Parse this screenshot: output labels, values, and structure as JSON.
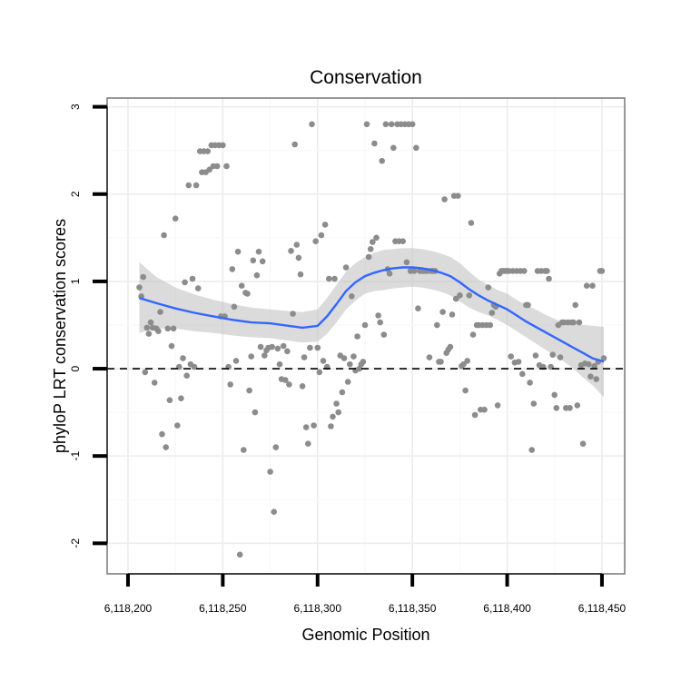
{
  "chart_data": {
    "type": "scatter",
    "title": "Conservation",
    "xlabel": "Genomic Position",
    "ylabel": "phyloP LRT conservation scores",
    "xlim": [
      6118189,
      6118462
    ],
    "ylim": [
      -2.35,
      3.1
    ],
    "x_ticks": [
      6118200,
      6118250,
      6118300,
      6118350,
      6118400,
      6118450
    ],
    "x_tick_labels": [
      "6,118,200",
      "6,118,250",
      "6,118,300",
      "6,118,350",
      "6,118,400",
      "6,118,450"
    ],
    "y_ticks": [
      -2,
      -1,
      0,
      1,
      2,
      3
    ],
    "y_tick_labels": [
      "-2",
      "-1",
      "0",
      "1",
      "2",
      "3"
    ],
    "reference_line": {
      "y": 0,
      "style": "dashed"
    },
    "colors": {
      "points": "#8c8c8c",
      "smooth": "#3366ff",
      "band": "#bdbdbd",
      "panel_border": "#7f7f7f"
    },
    "points": [
      [
        6118206,
        0.93
      ],
      [
        6118207,
        0.83
      ],
      [
        6118208,
        1.05
      ],
      [
        6118209,
        -0.04
      ],
      [
        6118210,
        0.47
      ],
      [
        6118211,
        0.4
      ],
      [
        6118212,
        0.53
      ],
      [
        6118213,
        0.47
      ],
      [
        6118214,
        -0.16
      ],
      [
        6118215,
        0.46
      ],
      [
        6118216,
        0.43
      ],
      [
        6118217,
        0.65
      ],
      [
        6118218,
        -0.75
      ],
      [
        6118219,
        1.53
      ],
      [
        6118220,
        -0.9
      ],
      [
        6118221,
        0.46
      ],
      [
        6118222,
        -0.36
      ],
      [
        6118223,
        0.26
      ],
      [
        6118224,
        0.46
      ],
      [
        6118225,
        1.72
      ],
      [
        6118226,
        -0.65
      ],
      [
        6118227,
        0.02
      ],
      [
        6118228,
        -0.34
      ],
      [
        6118229,
        0.12
      ],
      [
        6118230,
        0.99
      ],
      [
        6118231,
        -0.08
      ],
      [
        6118232,
        2.1
      ],
      [
        6118233,
        0.05
      ],
      [
        6118234,
        1.03
      ],
      [
        6118235,
        0.02
      ],
      [
        6118236,
        2.1
      ],
      [
        6118237,
        0.92
      ],
      [
        6118238,
        2.49
      ],
      [
        6118239,
        2.25
      ],
      [
        6118240,
        2.49
      ],
      [
        6118241,
        2.25
      ],
      [
        6118242,
        2.49
      ],
      [
        6118243,
        2.28
      ],
      [
        6118244,
        2.56
      ],
      [
        6118245,
        2.32
      ],
      [
        6118246,
        2.56
      ],
      [
        6118247,
        2.32
      ],
      [
        6118248,
        2.56
      ],
      [
        6118249,
        0.6
      ],
      [
        6118250,
        2.56
      ],
      [
        6118251,
        0.6
      ],
      [
        6118252,
        2.32
      ],
      [
        6118253,
        0.02
      ],
      [
        6118254,
        -0.18
      ],
      [
        6118255,
        1.14
      ],
      [
        6118256,
        0.71
      ],
      [
        6118257,
        0.09
      ],
      [
        6118258,
        1.34
      ],
      [
        6118259,
        -2.13
      ],
      [
        6118260,
        0.95
      ],
      [
        6118261,
        -0.93
      ],
      [
        6118262,
        0.87
      ],
      [
        6118263,
        0.86
      ],
      [
        6118264,
        -0.25
      ],
      [
        6118265,
        0.14
      ],
      [
        6118266,
        1.24
      ],
      [
        6118267,
        -0.5
      ],
      [
        6118268,
        1.07
      ],
      [
        6118269,
        1.34
      ],
      [
        6118270,
        0.25
      ],
      [
        6118271,
        1.23
      ],
      [
        6118272,
        0.15
      ],
      [
        6118273,
        0.21
      ],
      [
        6118274,
        0.24
      ],
      [
        6118275,
        -1.18
      ],
      [
        6118276,
        0.25
      ],
      [
        6118277,
        -1.64
      ],
      [
        6118278,
        -0.9
      ],
      [
        6118279,
        0.23
      ],
      [
        6118280,
        0.05
      ],
      [
        6118281,
        -0.12
      ],
      [
        6118282,
        0.26
      ],
      [
        6118283,
        -0.13
      ],
      [
        6118284,
        0.2
      ],
      [
        6118285,
        -0.18
      ],
      [
        6118286,
        1.35
      ],
      [
        6118287,
        0.63
      ],
      [
        6118288,
        2.57
      ],
      [
        6118289,
        1.42
      ],
      [
        6118290,
        1.27
      ],
      [
        6118291,
        1.08
      ],
      [
        6118292,
        -0.2
      ],
      [
        6118293,
        0.13
      ],
      [
        6118294,
        -0.67
      ],
      [
        6118295,
        -0.86
      ],
      [
        6118296,
        0.24
      ],
      [
        6118297,
        2.8
      ],
      [
        6118298,
        -0.65
      ],
      [
        6118299,
        1.46
      ],
      [
        6118300,
        0.24
      ],
      [
        6118301,
        -0.04
      ],
      [
        6118302,
        1.53
      ],
      [
        6118303,
        0.09
      ],
      [
        6118304,
        1.65
      ],
      [
        6118305,
        0.02
      ],
      [
        6118306,
        1.03
      ],
      [
        6118307,
        -0.66
      ],
      [
        6118308,
        -0.55
      ],
      [
        6118309,
        1.03
      ],
      [
        6118310,
        -0.4
      ],
      [
        6118311,
        -0.5
      ],
      [
        6118312,
        0.15
      ],
      [
        6118313,
        -0.27
      ],
      [
        6118314,
        0.12
      ],
      [
        6118315,
        1.16
      ],
      [
        6118316,
        -0.15
      ],
      [
        6118317,
        0.05
      ],
      [
        6118318,
        0.83
      ],
      [
        6118319,
        0.14
      ],
      [
        6118320,
        -0.02
      ],
      [
        6118321,
        0.37
      ],
      [
        6118322,
        0.0
      ],
      [
        6118323,
        0.05
      ],
      [
        6118324,
        0.08
      ],
      [
        6118325,
        0.5
      ],
      [
        6118326,
        2.8
      ],
      [
        6118327,
        1.28
      ],
      [
        6118328,
        1.37
      ],
      [
        6118329,
        1.45
      ],
      [
        6118330,
        2.58
      ],
      [
        6118331,
        1.5
      ],
      [
        6118332,
        0.61
      ],
      [
        6118333,
        0.53
      ],
      [
        6118334,
        2.38
      ],
      [
        6118335,
        0.39
      ],
      [
        6118336,
        2.8
      ],
      [
        6118337,
        1.14
      ],
      [
        6118338,
        1.09
      ],
      [
        6118339,
        2.8
      ],
      [
        6118340,
        2.53
      ],
      [
        6118341,
        1.46
      ],
      [
        6118342,
        2.8
      ],
      [
        6118343,
        1.46
      ],
      [
        6118344,
        2.8
      ],
      [
        6118345,
        1.46
      ],
      [
        6118346,
        2.8
      ],
      [
        6118347,
        1.22
      ],
      [
        6118348,
        2.8
      ],
      [
        6118349,
        1.12
      ],
      [
        6118350,
        2.8
      ],
      [
        6118351,
        1.12
      ],
      [
        6118352,
        2.53
      ],
      [
        6118353,
        0.69
      ],
      [
        6118354,
        1.12
      ],
      [
        6118355,
        1.12
      ],
      [
        6118356,
        1.12
      ],
      [
        6118357,
        1.12
      ],
      [
        6118358,
        1.12
      ],
      [
        6118359,
        0.13
      ],
      [
        6118360,
        1.12
      ],
      [
        6118361,
        1.12
      ],
      [
        6118362,
        1.12
      ],
      [
        6118363,
        0.5
      ],
      [
        6118364,
        0.08
      ],
      [
        6118365,
        0.08
      ],
      [
        6118366,
        0.65
      ],
      [
        6118367,
        1.94
      ],
      [
        6118368,
        0.18
      ],
      [
        6118369,
        0.22
      ],
      [
        6118370,
        0.25
      ],
      [
        6118371,
        0.62
      ],
      [
        6118372,
        1.98
      ],
      [
        6118373,
        0.8
      ],
      [
        6118374,
        1.98
      ],
      [
        6118375,
        0.84
      ],
      [
        6118376,
        0.03
      ],
      [
        6118377,
        0.05
      ],
      [
        6118378,
        -0.25
      ],
      [
        6118379,
        0.09
      ],
      [
        6118380,
        0.84
      ],
      [
        6118381,
        1.67
      ],
      [
        6118382,
        0.39
      ],
      [
        6118383,
        -0.53
      ],
      [
        6118384,
        0.5
      ],
      [
        6118385,
        0.5
      ],
      [
        6118386,
        -0.47
      ],
      [
        6118387,
        0.5
      ],
      [
        6118388,
        -0.47
      ],
      [
        6118389,
        0.5
      ],
      [
        6118390,
        0.93
      ],
      [
        6118391,
        0.5
      ],
      [
        6118392,
        0.64
      ],
      [
        6118393,
        0.73
      ],
      [
        6118394,
        0.71
      ],
      [
        6118395,
        -0.42
      ],
      [
        6118396,
        1.09
      ],
      [
        6118397,
        1.12
      ],
      [
        6118398,
        1.12
      ],
      [
        6118399,
        1.12
      ],
      [
        6118400,
        1.12
      ],
      [
        6118401,
        1.12
      ],
      [
        6118402,
        0.14
      ],
      [
        6118403,
        1.12
      ],
      [
        6118404,
        0.07
      ],
      [
        6118405,
        1.12
      ],
      [
        6118406,
        0.08
      ],
      [
        6118407,
        1.12
      ],
      [
        6118408,
        -0.06
      ],
      [
        6118409,
        1.12
      ],
      [
        6118410,
        0.73
      ],
      [
        6118411,
        0.73
      ],
      [
        6118412,
        -0.16
      ],
      [
        6118413,
        -0.93
      ],
      [
        6118414,
        -0.4
      ],
      [
        6118415,
        0.15
      ],
      [
        6118416,
        1.12
      ],
      [
        6118417,
        0.04
      ],
      [
        6118418,
        1.12
      ],
      [
        6118419,
        0.02
      ],
      [
        6118420,
        1.12
      ],
      [
        6118421,
        1.12
      ],
      [
        6118422,
        1.03
      ],
      [
        6118423,
        0.02
      ],
      [
        6118424,
        0.16
      ],
      [
        6118425,
        -0.3
      ],
      [
        6118426,
        -0.45
      ],
      [
        6118427,
        0.5
      ],
      [
        6118428,
        0.13
      ],
      [
        6118429,
        0.53
      ],
      [
        6118430,
        0.53
      ],
      [
        6118431,
        -0.45
      ],
      [
        6118432,
        0.53
      ],
      [
        6118433,
        -0.45
      ],
      [
        6118434,
        0.53
      ],
      [
        6118435,
        0.53
      ],
      [
        6118436,
        0.73
      ],
      [
        6118437,
        -0.42
      ],
      [
        6118438,
        0.53
      ],
      [
        6118439,
        0.04
      ],
      [
        6118440,
        -0.86
      ],
      [
        6118441,
        0.06
      ],
      [
        6118442,
        0.95
      ],
      [
        6118443,
        0.05
      ],
      [
        6118444,
        -0.09
      ],
      [
        6118445,
        0.95
      ],
      [
        6118446,
        0.03
      ],
      [
        6118447,
        -0.12
      ],
      [
        6118448,
        0.08
      ],
      [
        6118449,
        1.12
      ],
      [
        6118450,
        1.12
      ],
      [
        6118451,
        0.12
      ]
    ],
    "smooth_line": {
      "method": "loess",
      "x": [
        6118206,
        6118215,
        6118225,
        6118235,
        6118245,
        6118255,
        6118265,
        6118275,
        6118285,
        6118292,
        6118300,
        6118305,
        6118310,
        6118315,
        6118320,
        6118325,
        6118330,
        6118335,
        6118340,
        6118345,
        6118350,
        6118355,
        6118360,
        6118365,
        6118370,
        6118375,
        6118380,
        6118385,
        6118390,
        6118395,
        6118400,
        6118405,
        6118410,
        6118415,
        6118420,
        6118425,
        6118430,
        6118435,
        6118440,
        6118445,
        6118451
      ],
      "y": [
        0.81,
        0.75,
        0.69,
        0.64,
        0.6,
        0.56,
        0.53,
        0.52,
        0.49,
        0.47,
        0.49,
        0.6,
        0.74,
        0.89,
        0.99,
        1.06,
        1.1,
        1.13,
        1.15,
        1.16,
        1.16,
        1.15,
        1.13,
        1.1,
        1.06,
        0.99,
        0.91,
        0.84,
        0.78,
        0.73,
        0.68,
        0.61,
        0.54,
        0.48,
        0.42,
        0.36,
        0.3,
        0.24,
        0.18,
        0.12,
        0.08
      ],
      "ci_upper": [
        1.22,
        1.05,
        0.93,
        0.85,
        0.79,
        0.74,
        0.7,
        0.68,
        0.66,
        0.65,
        0.68,
        0.81,
        0.96,
        1.11,
        1.21,
        1.28,
        1.33,
        1.36,
        1.37,
        1.38,
        1.38,
        1.37,
        1.35,
        1.32,
        1.28,
        1.21,
        1.11,
        1.02,
        0.96,
        0.9,
        0.86,
        0.79,
        0.73,
        0.68,
        0.62,
        0.57,
        0.53,
        0.51,
        0.5,
        0.49,
        0.48
      ],
      "ci_lower": [
        0.41,
        0.46,
        0.46,
        0.43,
        0.41,
        0.38,
        0.36,
        0.35,
        0.32,
        0.3,
        0.31,
        0.4,
        0.53,
        0.68,
        0.78,
        0.86,
        0.89,
        0.9,
        0.92,
        0.93,
        0.94,
        0.93,
        0.91,
        0.88,
        0.84,
        0.77,
        0.7,
        0.65,
        0.61,
        0.56,
        0.5,
        0.43,
        0.36,
        0.29,
        0.22,
        0.15,
        0.08,
        0.0,
        -0.1,
        -0.19,
        -0.33
      ]
    }
  }
}
